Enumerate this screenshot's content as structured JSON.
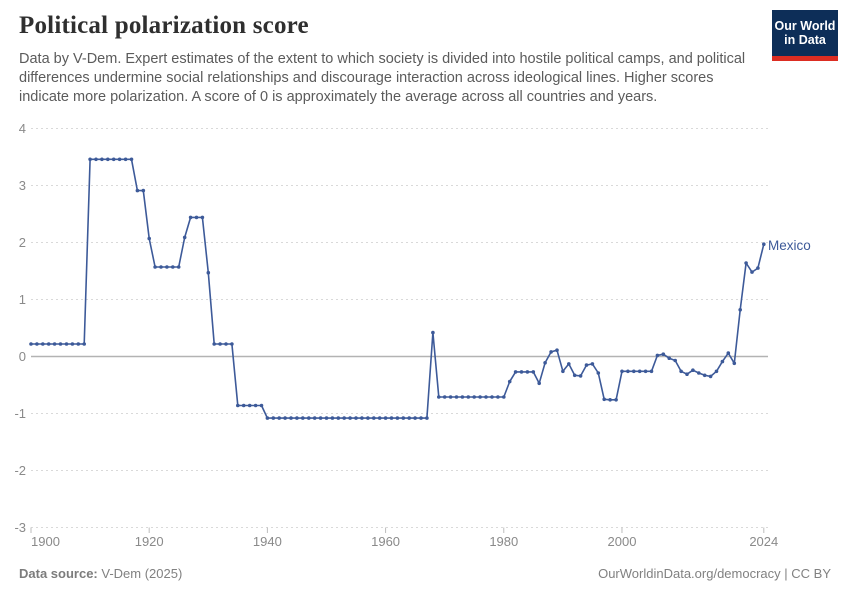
{
  "header": {
    "title": "Political polarization score",
    "subtitle": "Data by V-Dem. Expert estimates of the extent to which society is divided into hostile political camps, and political differences undermine social relationships and discourage interaction across ideological lines. Higher scores indicate more polarization. A score of 0 is approximately the average across all countries and years.",
    "logo": {
      "line1": "Our World",
      "line2": "in Data",
      "bg_color": "#0d2e58",
      "bar_color": "#dc2d22"
    }
  },
  "chart_data": {
    "type": "line",
    "title": "Political polarization score",
    "entity_label": "Mexico",
    "line_color": "#3d5a99",
    "grid_color": "#d9d9d9",
    "zero_line_color": "#b3b3b3",
    "axis_text_color": "#8a8a8a",
    "x_ticks": [
      1900,
      1920,
      1940,
      1960,
      1980,
      2000,
      2024
    ],
    "y_ticks": [
      4,
      3,
      2,
      1,
      0,
      -1,
      -2,
      -3
    ],
    "xlim": [
      1900,
      2024
    ],
    "ylim": [
      -3,
      4
    ],
    "legend_position": "end-of-line label",
    "grid": "horizontal dashed gridlines, solid line at zero",
    "series": [
      {
        "name": "Mexico",
        "points": [
          [
            1900,
            0.22
          ],
          [
            1901,
            0.22
          ],
          [
            1902,
            0.22
          ],
          [
            1903,
            0.22
          ],
          [
            1904,
            0.22
          ],
          [
            1905,
            0.22
          ],
          [
            1906,
            0.22
          ],
          [
            1907,
            0.22
          ],
          [
            1908,
            0.22
          ],
          [
            1909,
            0.22
          ],
          [
            1910,
            3.46
          ],
          [
            1911,
            3.46
          ],
          [
            1912,
            3.46
          ],
          [
            1913,
            3.46
          ],
          [
            1914,
            3.46
          ],
          [
            1915,
            3.46
          ],
          [
            1916,
            3.46
          ],
          [
            1917,
            3.46
          ],
          [
            1918,
            2.91
          ],
          [
            1919,
            2.91
          ],
          [
            1920,
            2.07
          ],
          [
            1921,
            1.57
          ],
          [
            1922,
            1.57
          ],
          [
            1923,
            1.57
          ],
          [
            1924,
            1.57
          ],
          [
            1925,
            1.57
          ],
          [
            1926,
            2.09
          ],
          [
            1927,
            2.44
          ],
          [
            1928,
            2.44
          ],
          [
            1929,
            2.44
          ],
          [
            1930,
            1.47
          ],
          [
            1931,
            0.22
          ],
          [
            1932,
            0.22
          ],
          [
            1933,
            0.22
          ],
          [
            1934,
            0.22
          ],
          [
            1935,
            -0.86
          ],
          [
            1936,
            -0.86
          ],
          [
            1937,
            -0.86
          ],
          [
            1938,
            -0.86
          ],
          [
            1939,
            -0.86
          ],
          [
            1940,
            -1.08
          ],
          [
            1941,
            -1.08
          ],
          [
            1942,
            -1.08
          ],
          [
            1943,
            -1.08
          ],
          [
            1944,
            -1.08
          ],
          [
            1945,
            -1.08
          ],
          [
            1946,
            -1.08
          ],
          [
            1947,
            -1.08
          ],
          [
            1948,
            -1.08
          ],
          [
            1949,
            -1.08
          ],
          [
            1950,
            -1.08
          ],
          [
            1951,
            -1.08
          ],
          [
            1952,
            -1.08
          ],
          [
            1953,
            -1.08
          ],
          [
            1954,
            -1.08
          ],
          [
            1955,
            -1.08
          ],
          [
            1956,
            -1.08
          ],
          [
            1957,
            -1.08
          ],
          [
            1958,
            -1.08
          ],
          [
            1959,
            -1.08
          ],
          [
            1960,
            -1.08
          ],
          [
            1961,
            -1.08
          ],
          [
            1962,
            -1.08
          ],
          [
            1963,
            -1.08
          ],
          [
            1964,
            -1.08
          ],
          [
            1965,
            -1.08
          ],
          [
            1966,
            -1.08
          ],
          [
            1967,
            -1.08
          ],
          [
            1968,
            0.42
          ],
          [
            1969,
            -0.71
          ],
          [
            1970,
            -0.71
          ],
          [
            1971,
            -0.71
          ],
          [
            1972,
            -0.71
          ],
          [
            1973,
            -0.71
          ],
          [
            1974,
            -0.71
          ],
          [
            1975,
            -0.71
          ],
          [
            1976,
            -0.71
          ],
          [
            1977,
            -0.71
          ],
          [
            1978,
            -0.71
          ],
          [
            1979,
            -0.71
          ],
          [
            1980,
            -0.71
          ],
          [
            1981,
            -0.44
          ],
          [
            1982,
            -0.27
          ],
          [
            1983,
            -0.27
          ],
          [
            1984,
            -0.27
          ],
          [
            1985,
            -0.27
          ],
          [
            1986,
            -0.47
          ],
          [
            1987,
            -0.11
          ],
          [
            1988,
            0.08
          ],
          [
            1989,
            0.11
          ],
          [
            1990,
            -0.26
          ],
          [
            1991,
            -0.13
          ],
          [
            1992,
            -0.33
          ],
          [
            1993,
            -0.34
          ],
          [
            1994,
            -0.15
          ],
          [
            1995,
            -0.13
          ],
          [
            1996,
            -0.29
          ],
          [
            1997,
            -0.75
          ],
          [
            1998,
            -0.76
          ],
          [
            1999,
            -0.76
          ],
          [
            2000,
            -0.26
          ],
          [
            2001,
            -0.26
          ],
          [
            2002,
            -0.26
          ],
          [
            2003,
            -0.26
          ],
          [
            2004,
            -0.26
          ],
          [
            2005,
            -0.26
          ],
          [
            2006,
            0.02
          ],
          [
            2007,
            0.04
          ],
          [
            2008,
            -0.03
          ],
          [
            2009,
            -0.07
          ],
          [
            2010,
            -0.26
          ],
          [
            2011,
            -0.31
          ],
          [
            2012,
            -0.24
          ],
          [
            2013,
            -0.29
          ],
          [
            2014,
            -0.33
          ],
          [
            2015,
            -0.35
          ],
          [
            2016,
            -0.26
          ],
          [
            2017,
            -0.09
          ],
          [
            2018,
            0.06
          ],
          [
            2019,
            -0.12
          ],
          [
            2020,
            0.82
          ],
          [
            2021,
            1.64
          ],
          [
            2022,
            1.48
          ],
          [
            2023,
            1.55
          ],
          [
            2024,
            1.97
          ]
        ]
      }
    ]
  },
  "footer": {
    "source_label": "Data source:",
    "source_value": " V-Dem (2025)",
    "link": "OurWorldinData.org/democracy",
    "separator": " | ",
    "license": "CC BY"
  }
}
